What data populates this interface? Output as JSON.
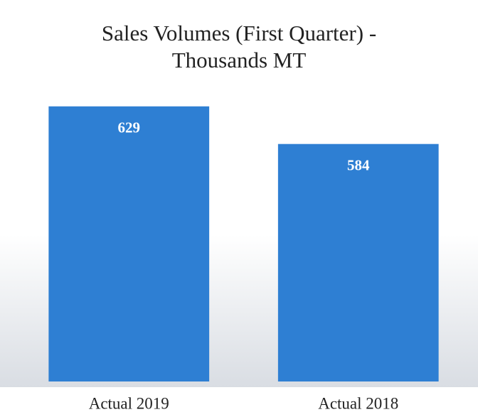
{
  "chart_data": {
    "type": "bar",
    "title": "Sales Volumes (First Quarter) - Thousands MT",
    "categories": [
      "Actual 2019",
      "Actual 2018"
    ],
    "values": [
      629,
      584
    ],
    "color": "#2e7fd3",
    "ylim": [
      300,
      650
    ]
  }
}
